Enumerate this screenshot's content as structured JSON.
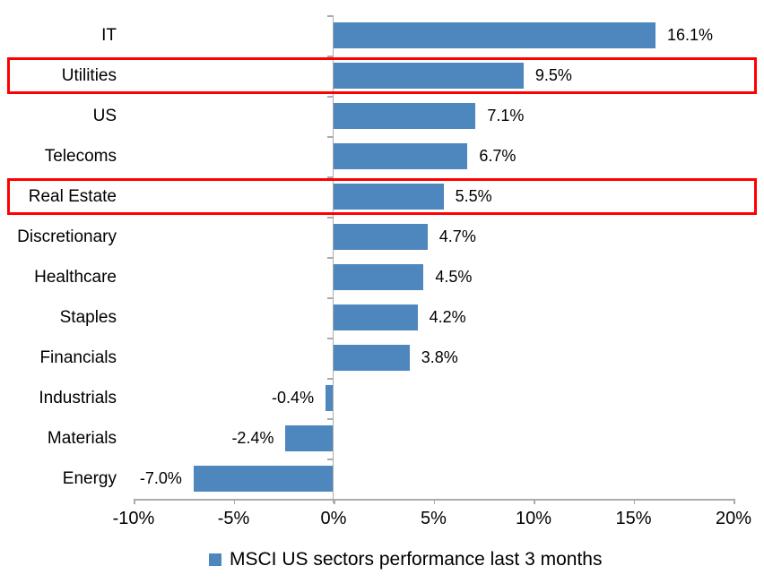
{
  "chart_data": {
    "type": "bar",
    "orientation": "horizontal",
    "categories": [
      "IT",
      "Utilities",
      "US",
      "Telecoms",
      "Real Estate",
      "Discretionary",
      "Healthcare",
      "Staples",
      "Financials",
      "Industrials",
      "Materials",
      "Energy"
    ],
    "values": [
      16.1,
      9.5,
      7.1,
      6.7,
      5.5,
      4.7,
      4.5,
      4.2,
      3.8,
      -0.4,
      -2.4,
      -7.0
    ],
    "value_labels": [
      "16.1%",
      "9.5%",
      "7.1%",
      "6.7%",
      "5.5%",
      "4.7%",
      "4.5%",
      "4.2%",
      "3.8%",
      "-0.4%",
      "-2.4%",
      "-7.0%"
    ],
    "highlighted_categories": [
      "Utilities",
      "Real Estate"
    ],
    "xlim": [
      -10,
      20
    ],
    "x_tick_values": [
      -10,
      -5,
      0,
      5,
      10,
      15,
      20
    ],
    "x_tick_labels": [
      "-10%",
      "-5%",
      "0%",
      "5%",
      "10%",
      "15%",
      "20%"
    ],
    "grid": false,
    "legend_position": "bottom-center",
    "legend": "MSCI US sectors performance last 3 months",
    "bar_color": "#4E87BD",
    "highlight_box_color": "#FF0000",
    "axis_color": "#ABABAB",
    "text_color": "#000000"
  }
}
